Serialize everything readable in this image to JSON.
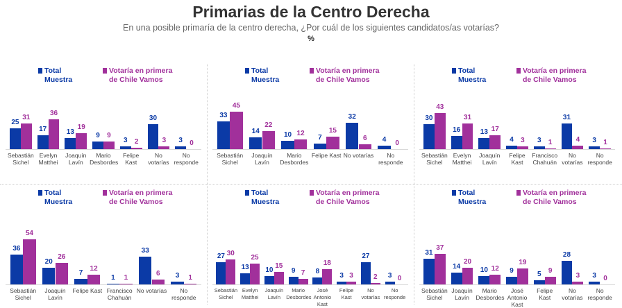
{
  "title": "Primarias de la Centro Derecha",
  "subtitle": "En una posible primaría de la centro derecha, ¿Por cuál de los siguientes candidatos/as votarías?",
  "unit": "%",
  "chart_data": [
    {
      "type": "bar",
      "categories": [
        "Sebastián Sichel",
        "Evelyn Matthei",
        "Joaquín Lavín",
        "Mario Desbordes",
        "Felipe Kast",
        "No votarías",
        "No responde"
      ],
      "series": [
        {
          "name": "Total Muestra",
          "color": "#0b3aa6",
          "values": [
            25,
            17,
            13,
            9,
            3,
            30,
            3
          ]
        },
        {
          "name": "Votaría en primera de Chile Vamos",
          "color": "#a1309b",
          "values": [
            31,
            36,
            19,
            9,
            2,
            3,
            0
          ]
        }
      ]
    },
    {
      "type": "bar",
      "categories": [
        "Sebastián Sichel",
        "Joaquín Lavín",
        "Mario Desbordes",
        "Felipe Kast",
        "No votarías",
        "No responde"
      ],
      "series": [
        {
          "name": "Total Muestra",
          "color": "#0b3aa6",
          "values": [
            33,
            14,
            10,
            7,
            32,
            4
          ]
        },
        {
          "name": "Votaría en primera de Chile Vamos",
          "color": "#a1309b",
          "values": [
            45,
            22,
            12,
            15,
            6,
            0
          ]
        }
      ]
    },
    {
      "type": "bar",
      "categories": [
        "Sebastián Sichel",
        "Evelyn Matthei",
        "Joaquín Lavín",
        "Felipe Kast",
        "Francisco Chahuán",
        "No votarías",
        "No responde"
      ],
      "series": [
        {
          "name": "Total Muestra",
          "color": "#0b3aa6",
          "values": [
            30,
            16,
            13,
            4,
            3,
            31,
            3
          ]
        },
        {
          "name": "Votaría en primera de Chile Vamos",
          "color": "#a1309b",
          "values": [
            43,
            31,
            17,
            3,
            1,
            4,
            1
          ]
        }
      ]
    },
    {
      "type": "bar",
      "categories": [
        "Sebastián Sichel",
        "Joaquín Lavín",
        "Felipe Kast",
        "Francisco Chahuán",
        "No votarías",
        "No responde"
      ],
      "series": [
        {
          "name": "Total Muestra",
          "color": "#0b3aa6",
          "values": [
            36,
            20,
            7,
            1,
            33,
            3
          ]
        },
        {
          "name": "Votaría en primera de Chile Vamos",
          "color": "#a1309b",
          "values": [
            54,
            26,
            12,
            1,
            6,
            1
          ]
        }
      ]
    },
    {
      "type": "bar",
      "categories": [
        "Sebastián Sichel",
        "Evelyn Matthei",
        "Joaquín Lavín",
        "Mario Desbordes",
        "José Antonio Kast",
        "Felipe Kast",
        "No votarías",
        "No responde"
      ],
      "series": [
        {
          "name": "Total Muestra",
          "color": "#0b3aa6",
          "values": [
            27,
            13,
            10,
            9,
            8,
            3,
            27,
            3
          ]
        },
        {
          "name": "Votaría en primera de Chile Vamos",
          "color": "#a1309b",
          "values": [
            30,
            25,
            15,
            7,
            18,
            3,
            2,
            0
          ]
        }
      ]
    },
    {
      "type": "bar",
      "categories": [
        "Sebastián Sichel",
        "Joaquín Lavín",
        "Mario Desbordes",
        "José Antonio Kast",
        "Felipe Kast",
        "No votarías",
        "No responde"
      ],
      "series": [
        {
          "name": "Total Muestra",
          "color": "#0b3aa6",
          "values": [
            31,
            14,
            10,
            9,
            5,
            28,
            3
          ]
        },
        {
          "name": "Votaría en primera de Chile Vamos",
          "color": "#a1309b",
          "values": [
            37,
            20,
            12,
            19,
            9,
            3,
            0
          ]
        }
      ]
    }
  ]
}
